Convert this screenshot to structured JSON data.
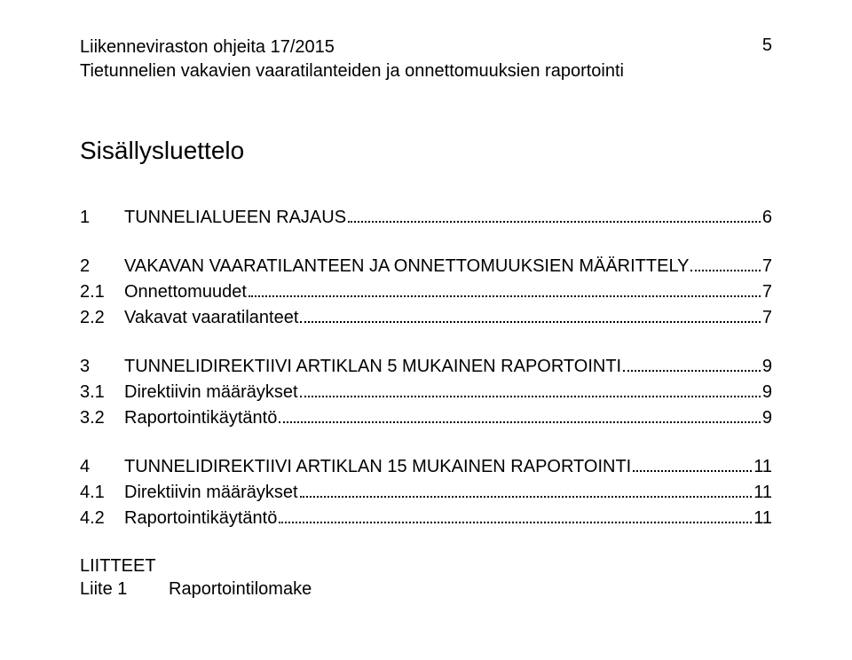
{
  "header": {
    "line1": "Liikenneviraston ohjeita 17/2015",
    "line2": "Tietunnelien vakavien vaaratilanteiden ja onnettomuuksien raportointi",
    "pageNumber": "5"
  },
  "title": "Sisällysluettelo",
  "toc": [
    {
      "rows": [
        {
          "num": "1",
          "label": "TUNNELIALUEEN RAJAUS",
          "page": "6"
        }
      ]
    },
    {
      "rows": [
        {
          "num": "2",
          "label": "VAKAVAN VAARATILANTEEN JA ONNETTOMUUKSIEN MÄÄRITTELY",
          "page": "7"
        },
        {
          "num": "2.1",
          "label": "Onnettomuudet",
          "page": "7"
        },
        {
          "num": "2.2",
          "label": "Vakavat vaaratilanteet",
          "page": "7"
        }
      ]
    },
    {
      "rows": [
        {
          "num": "3",
          "label": "TUNNELIDIREKTIIVI ARTIKLAN 5 MUKAINEN RAPORTOINTI",
          "page": "9"
        },
        {
          "num": "3.1",
          "label": "Direktiivin määräykset",
          "page": "9"
        },
        {
          "num": "3.2",
          "label": "Raportointikäytäntö",
          "page": "9"
        }
      ]
    },
    {
      "rows": [
        {
          "num": "4",
          "label": "TUNNELIDIREKTIIVI ARTIKLAN 15 MUKAINEN RAPORTOINTI",
          "page": "11"
        },
        {
          "num": "4.1",
          "label": "Direktiivin määräykset",
          "page": "11"
        },
        {
          "num": "4.2",
          "label": "Raportointikäytäntö",
          "page": "11"
        }
      ]
    }
  ],
  "appendix": {
    "heading": "LIITTEET",
    "items": [
      {
        "num": "Liite 1",
        "label": "Raportointilomake"
      }
    ]
  }
}
